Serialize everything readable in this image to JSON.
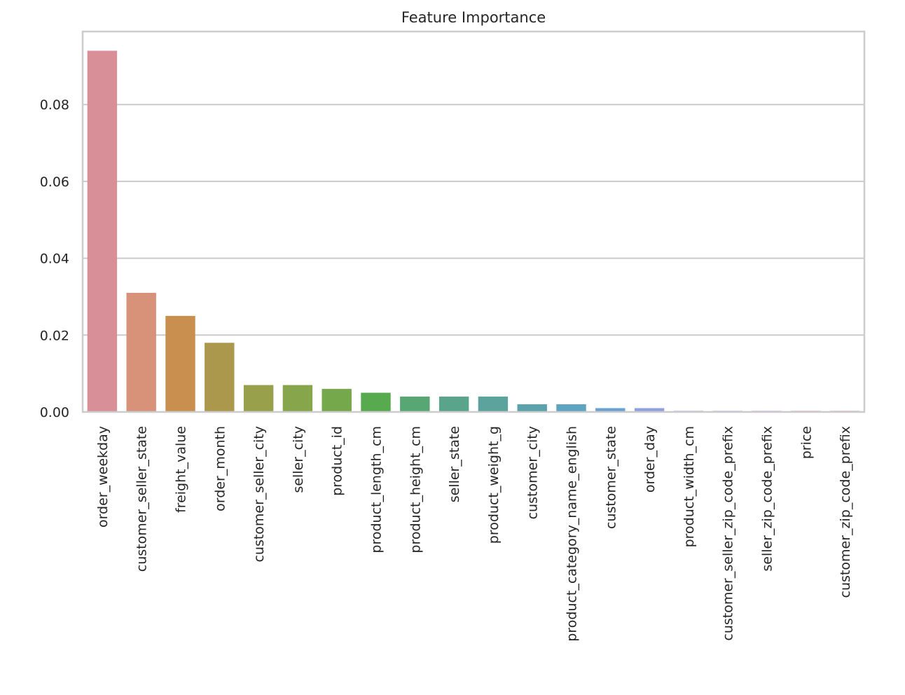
{
  "chart_data": {
    "type": "bar",
    "title": "Feature Importance",
    "xlabel": "",
    "ylabel": "",
    "ylim": [
      0,
      0.099
    ],
    "yticks": [
      0.0,
      0.02,
      0.04,
      0.06,
      0.08
    ],
    "ytick_labels": [
      "0.00",
      "0.02",
      "0.04",
      "0.06",
      "0.08"
    ],
    "grid": "horizontal",
    "legend": "none",
    "categories": [
      "order_weekday",
      "customer_seller_state",
      "freight_value",
      "order_month",
      "customer_seller_city",
      "seller_city",
      "product_id",
      "product_length_cm",
      "product_height_cm",
      "seller_state",
      "product_weight_g",
      "customer_city",
      "product_category_name_english",
      "customer_state",
      "order_day",
      "product_width_cm",
      "customer_seller_zip_code_prefix",
      "seller_zip_code_prefix",
      "price",
      "customer_zip_code_prefix"
    ],
    "values": [
      0.094,
      0.031,
      0.025,
      0.018,
      0.007,
      0.007,
      0.006,
      0.005,
      0.004,
      0.004,
      0.004,
      0.002,
      0.002,
      0.001,
      0.001,
      0.0003,
      0.0003,
      0.0003,
      0.0003,
      0.0003
    ],
    "colors": [
      "#d98f97",
      "#d8927a",
      "#c98f4e",
      "#ab984c",
      "#98a04b",
      "#87a64b",
      "#74a84b",
      "#57aa4e",
      "#58a673",
      "#5aa48b",
      "#5ba39c",
      "#5ca2ab",
      "#5ea3bf",
      "#6ba2d3",
      "#91a1e0",
      "#b1a0e0",
      "#c89de0",
      "#d89be0",
      "#e09ad0",
      "#e099ba"
    ],
    "axes_color": "#cccccc",
    "grid_color": "#cccccc"
  }
}
